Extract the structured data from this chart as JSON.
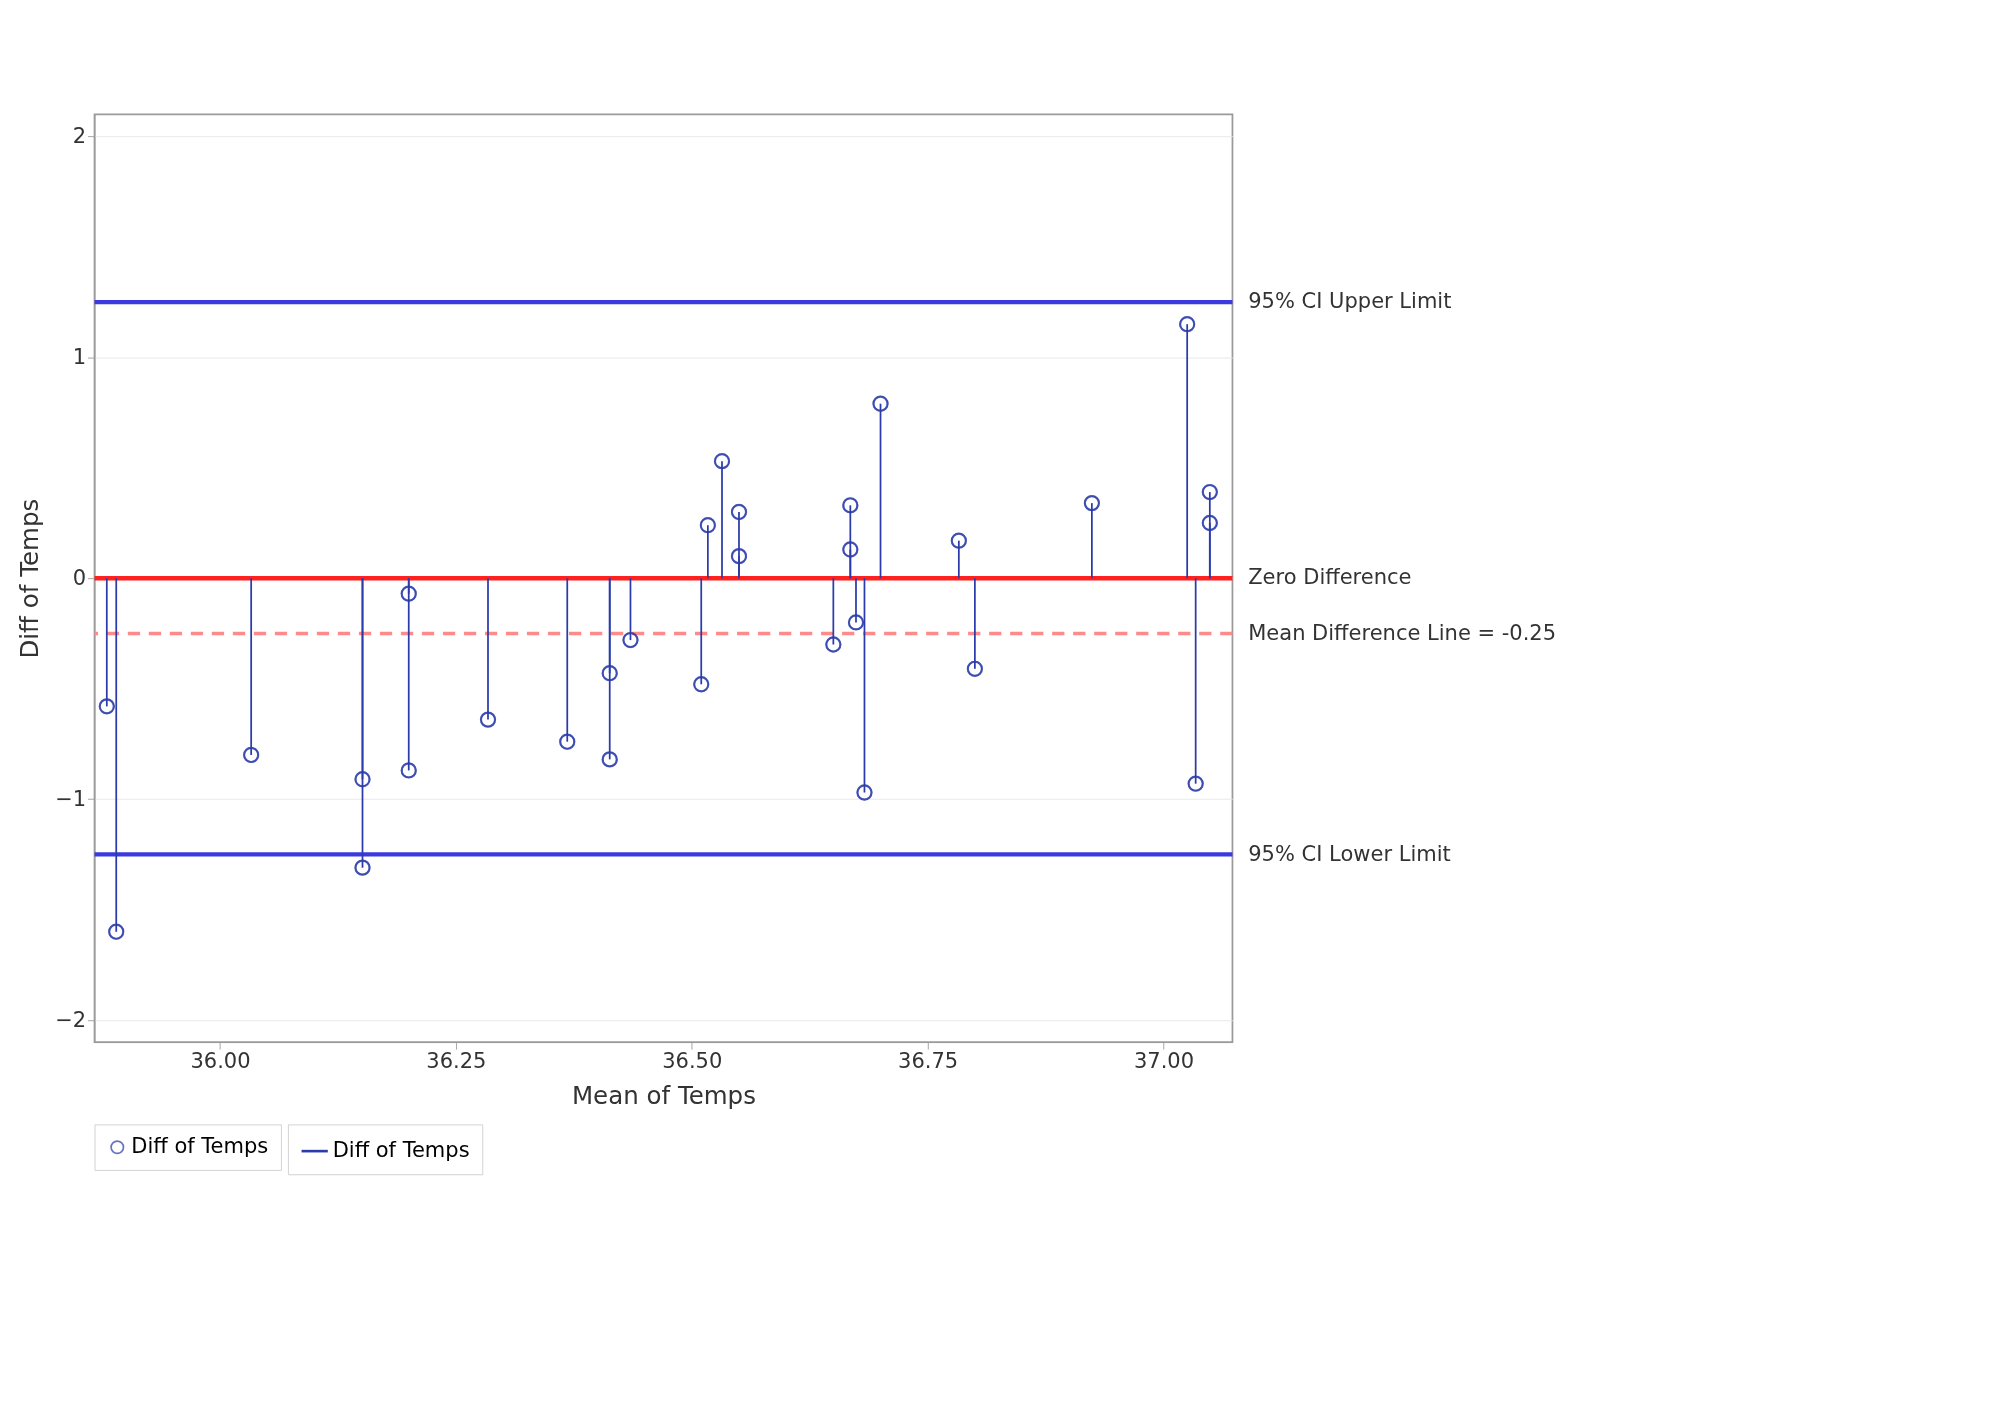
{
  "chart_data": {
    "type": "lollipop",
    "xlabel": "Mean of Temps",
    "ylabel": "Diff of Temps",
    "xlim": [
      35.867,
      37.073
    ],
    "ylim": [
      -2.1,
      2.1
    ],
    "xticks": [
      {
        "value": 36,
        "label": "36.00"
      },
      {
        "value": 36.25,
        "label": "36.25"
      },
      {
        "value": 36.5,
        "label": "36.50"
      },
      {
        "value": 36.75,
        "label": "36.75"
      },
      {
        "value": 37,
        "label": "37.00"
      }
    ],
    "yticks": [
      -2,
      -1,
      0,
      1,
      2
    ],
    "grid": "y",
    "legend": "bottom",
    "x": [
      35.88,
      35.89,
      36.033,
      36.151,
      36.151,
      36.2,
      36.2,
      36.284,
      36.368,
      36.413,
      36.413,
      36.435,
      36.51,
      36.517,
      36.532,
      36.55,
      36.55,
      36.65,
      36.668,
      36.668,
      36.674,
      36.683,
      36.7,
      36.783,
      36.8,
      36.924,
      37.025,
      37.034,
      37.049,
      37.049
    ],
    "series": [
      {
        "name": "Diff of Temps",
        "type": "scatter",
        "marker": "circle",
        "color": "#2b3caa",
        "values": [
          -0.58,
          -1.6,
          -0.8,
          -0.91,
          -1.31,
          -0.07,
          -0.87,
          -0.64,
          -0.74,
          -0.43,
          -0.82,
          -0.28,
          -0.48,
          0.24,
          0.53,
          0.3,
          0.1,
          -0.3,
          0.33,
          0.13,
          -0.2,
          -0.97,
          0.79,
          0.17,
          -0.41,
          0.34,
          1.15,
          -0.93,
          0.39,
          0.25
        ]
      },
      {
        "name": "Diff of Temps",
        "marker": "circle",
        "color": "#2b3caa",
        "values": [
          -0.58,
          -1.6,
          -0.8,
          -0.91,
          -1.31,
          -0.07,
          -0.87,
          -0.64,
          -0.74,
          -0.43,
          -0.82,
          -0.28,
          -0.48,
          0.24,
          0.53,
          0.3,
          0.1,
          -0.3,
          0.33,
          0.13,
          -0.2,
          -0.97,
          0.79,
          0.17,
          -0.41,
          0.34,
          1.15,
          -0.93,
          0.39,
          0.25
        ]
      }
    ],
    "ref_lines": [
      {
        "axis": "y",
        "value": 1.25,
        "label": "95% CI Upper Limit",
        "color": "#3a3ae0",
        "line_style": "solid"
      },
      {
        "axis": "y",
        "value": 0,
        "label": "Zero Difference",
        "color": "#ff2020",
        "line_style": "solid"
      },
      {
        "axis": "y",
        "value": -0.25,
        "label": "Mean Difference Line = -0.25",
        "color": "#ff8a8a",
        "line_style": "dashed"
      },
      {
        "axis": "y",
        "value": -1.25,
        "label": "95% CI Lower Limit",
        "color": "#3a3ae0",
        "line_style": "solid"
      }
    ]
  }
}
